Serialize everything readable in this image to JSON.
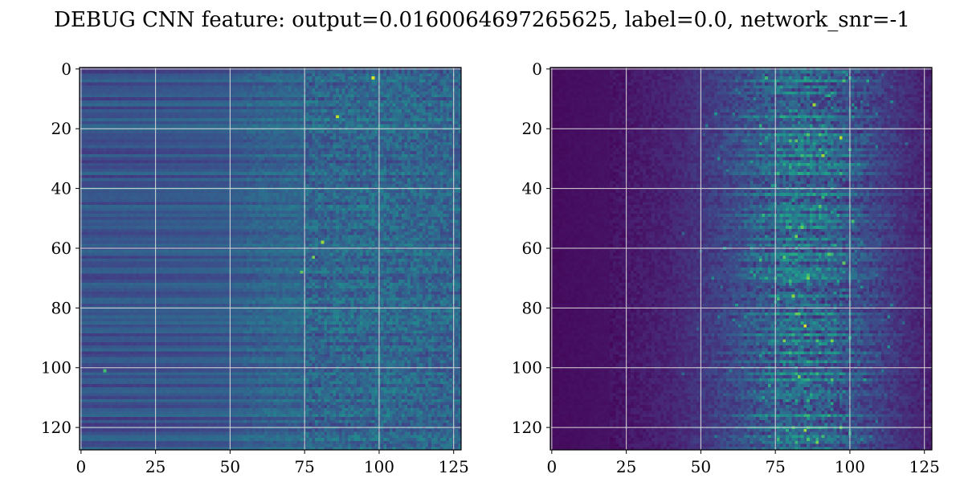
{
  "figure": {
    "title": "DEBUG CNN feature: output=0.0160064697265625, label=0.0, network_snr=-1"
  },
  "colors": {
    "colormap": "viridis",
    "grid": "#d9d9d9",
    "axes_frame": "#000000",
    "background": "#ffffff"
  },
  "chart_data": [
    {
      "type": "heatmap",
      "colormap": "viridis",
      "rows": 128,
      "cols": 128,
      "x_ticks": [
        0,
        25,
        50,
        75,
        100,
        125
      ],
      "y_ticks": [
        0,
        20,
        40,
        60,
        80,
        100,
        120
      ],
      "xlim": [
        -0.5,
        127.5
      ],
      "ylim": [
        127.5,
        -0.5
      ],
      "y_inverted": true,
      "grid": true,
      "description_of_values": "normalized intensity 0-1; low-noise horizontal banding in columns 0-60, rising noise and speckle in columns 60-127",
      "column_profile": {
        "cols": [
          0,
          25,
          50,
          60,
          70,
          75,
          100,
          127
        ],
        "mean": [
          0.25,
          0.26,
          0.28,
          0.31,
          0.33,
          0.32,
          0.34,
          0.32
        ]
      },
      "hot_spots": [
        {
          "row": 3,
          "col": 98,
          "value": 0.95
        },
        {
          "row": 16,
          "col": 86,
          "value": 0.9
        },
        {
          "row": 58,
          "col": 81,
          "value": 0.85
        },
        {
          "row": 63,
          "col": 78,
          "value": 0.8
        },
        {
          "row": 68,
          "col": 74,
          "value": 0.75
        },
        {
          "row": 101,
          "col": 8,
          "value": 0.7
        }
      ]
    },
    {
      "type": "heatmap",
      "colormap": "viridis",
      "rows": 128,
      "cols": 128,
      "x_ticks": [
        0,
        25,
        50,
        75,
        100,
        125
      ],
      "y_ticks": [
        0,
        20,
        40,
        60,
        80,
        100,
        120
      ],
      "xlim": [
        -0.5,
        127.5
      ],
      "ylim": [
        127.5,
        -0.5
      ],
      "y_inverted": true,
      "grid": true,
      "description_of_values": "normalized intensity 0-1; near-zero columns 0-20, faint streaks 20-55, bright horizontal streaks concentrated in columns 60-115",
      "column_profile": {
        "cols": [
          0,
          20,
          40,
          60,
          80,
          100,
          115,
          127
        ],
        "mean": [
          0.03,
          0.05,
          0.1,
          0.2,
          0.28,
          0.22,
          0.15,
          0.08
        ]
      },
      "hot_spots": [
        {
          "row": 12,
          "col": 88,
          "value": 0.85
        },
        {
          "row": 23,
          "col": 97,
          "value": 0.9
        },
        {
          "row": 56,
          "col": 82,
          "value": 0.8
        },
        {
          "row": 65,
          "col": 98,
          "value": 0.75
        },
        {
          "row": 77,
          "col": 76,
          "value": 0.7
        },
        {
          "row": 86,
          "col": 85,
          "value": 0.95
        },
        {
          "row": 103,
          "col": 83,
          "value": 0.8
        },
        {
          "row": 121,
          "col": 85,
          "value": 0.85
        },
        {
          "row": 125,
          "col": 89,
          "value": 0.8
        }
      ]
    }
  ]
}
